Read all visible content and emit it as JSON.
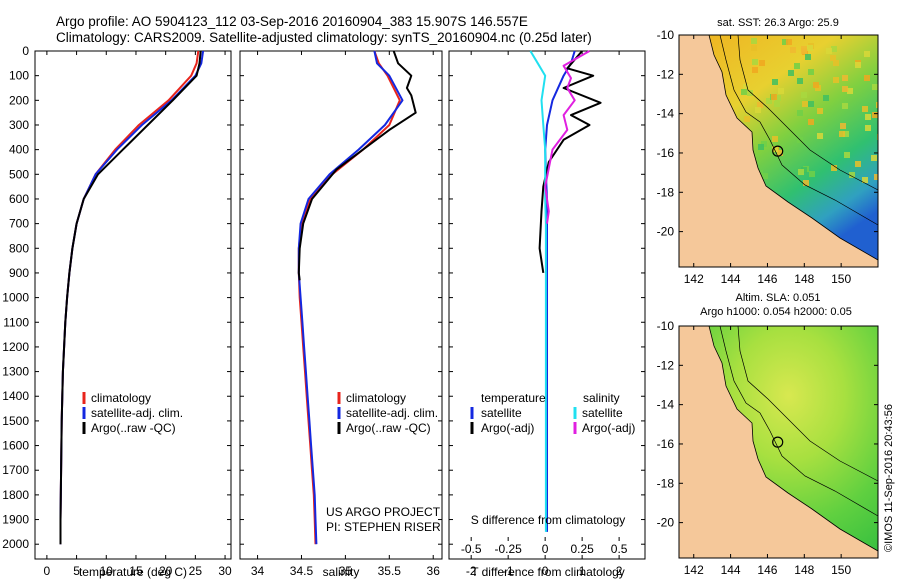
{
  "header": {
    "line1": "Argo profile: AO 5904123_112 03-Sep-2016 20160904_383 15.907S 146.557E",
    "line2": "Climatology: CARS2009. Satellite-adjusted climatology: synTS_20160904.nc (0.25d later)"
  },
  "credit": {
    "project": "US ARGO PROJECT",
    "pi": "PI: STEPHEN RISER",
    "stamp": "©IMOS 11-Sep-2016 20:43:56"
  },
  "colors": {
    "climatology": "#e8241c",
    "satellite": "#1428e0",
    "argo": "#000000",
    "sal_satellite": "#20e0f0",
    "sal_argo": "#e020e0",
    "land": "#f5c89a"
  },
  "chart_data": [
    {
      "type": "line",
      "xlabel": "temperature (deg C)",
      "xlim": [
        -2,
        31
      ],
      "xticks": [
        0,
        5,
        10,
        15,
        20,
        25,
        30
      ],
      "ylim": [
        0,
        2060
      ],
      "yticks": [
        0,
        100,
        200,
        300,
        400,
        500,
        600,
        700,
        800,
        900,
        1000,
        1100,
        1200,
        1300,
        1400,
        1500,
        1600,
        1700,
        1800,
        1900,
        2000
      ],
      "legend": [
        "climatology",
        "satellite-adj. clim.",
        "Argo(..raw -QC)"
      ],
      "series": [
        {
          "name": "climatology",
          "color": "#e8241c",
          "x": [
            25.5,
            25.2,
            24.3,
            20.5,
            15.5,
            11.5,
            8.2,
            6.2,
            5.0,
            4.3,
            3.8,
            3.4,
            3.1,
            2.9,
            2.7,
            2.6,
            2.5,
            2.45,
            2.4,
            2.35,
            2.3,
            2.3
          ],
          "y": [
            0,
            50,
            100,
            200,
            300,
            400,
            500,
            600,
            700,
            800,
            900,
            1000,
            1100,
            1200,
            1300,
            1400,
            1500,
            1600,
            1700,
            1800,
            1900,
            2000
          ]
        },
        {
          "name": "satellite-adj. clim.",
          "color": "#1428e0",
          "x": [
            26.3,
            26.0,
            25.0,
            21.0,
            16.0,
            11.8,
            8.2,
            6.2,
            5.0,
            4.3,
            3.8,
            3.4,
            3.1,
            2.9,
            2.7,
            2.6,
            2.5,
            2.45,
            2.4,
            2.35,
            2.3,
            2.3
          ],
          "y": [
            0,
            50,
            100,
            200,
            300,
            400,
            500,
            600,
            700,
            800,
            900,
            1000,
            1100,
            1200,
            1300,
            1400,
            1500,
            1600,
            1700,
            1800,
            1900,
            2000
          ]
        },
        {
          "name": "Argo(..raw -QC)",
          "color": "#000000",
          "x": [
            25.9,
            25.7,
            25.2,
            21.2,
            17.0,
            12.8,
            8.6,
            6.2,
            5.0,
            4.3,
            3.8,
            3.4,
            3.1,
            2.9,
            2.7,
            2.6,
            2.5,
            2.45,
            2.4,
            2.35,
            2.3,
            2.3
          ],
          "y": [
            0,
            50,
            100,
            200,
            300,
            400,
            500,
            600,
            700,
            800,
            900,
            1000,
            1100,
            1200,
            1300,
            1400,
            1500,
            1600,
            1700,
            1800,
            1900,
            2000
          ]
        }
      ]
    },
    {
      "type": "line",
      "xlabel": "salinity",
      "xlim": [
        33.8,
        36.1
      ],
      "xticks": [
        34,
        34.5,
        35,
        35.5,
        36
      ],
      "ylim": [
        0,
        2060
      ],
      "legend": [
        "climatology",
        "satellite-adj. clim.",
        "Argo(..raw -QC)"
      ],
      "series": [
        {
          "name": "climatology",
          "color": "#e8241c",
          "x": [
            35.33,
            35.38,
            35.48,
            35.62,
            35.5,
            35.2,
            34.85,
            34.6,
            34.5,
            34.47,
            34.47,
            34.48,
            34.5,
            34.52,
            34.54,
            34.56,
            34.58,
            34.6,
            34.62,
            34.64,
            34.65,
            34.66
          ],
          "y": [
            0,
            50,
            100,
            200,
            300,
            400,
            500,
            600,
            700,
            800,
            900,
            1000,
            1100,
            1200,
            1300,
            1400,
            1500,
            1600,
            1700,
            1800,
            1900,
            2000
          ]
        },
        {
          "name": "satellite-adj. clim.",
          "color": "#1428e0",
          "x": [
            35.33,
            35.36,
            35.5,
            35.65,
            35.45,
            35.15,
            34.82,
            34.58,
            34.49,
            34.47,
            34.47,
            34.49,
            34.51,
            34.53,
            34.55,
            34.57,
            34.59,
            34.61,
            34.63,
            34.65,
            34.66,
            34.67
          ],
          "y": [
            0,
            50,
            100,
            200,
            300,
            400,
            500,
            600,
            700,
            800,
            900,
            1000,
            1100,
            1200,
            1300,
            1400,
            1500,
            1600,
            1700,
            1800,
            1900,
            2000
          ]
        },
        {
          "name": "Argo(..raw -QC)",
          "color": "#000000",
          "x": [
            35.55,
            35.6,
            35.75,
            35.7,
            35.75,
            35.8,
            35.5,
            35.2,
            34.9,
            34.62,
            34.52,
            34.48,
            34.47,
            34.48
          ],
          "y": [
            0,
            50,
            100,
            150,
            180,
            250,
            320,
            400,
            480,
            600,
            700,
            800,
            900,
            930
          ]
        }
      ]
    },
    {
      "type": "line",
      "xlabel": "T difference from climatology",
      "xlabel2": "S difference from climatology",
      "xlim": [
        -2.6,
        2.7
      ],
      "xticks": [
        -2,
        -1,
        0,
        1,
        2
      ],
      "sticks": [
        "-0.5",
        "-0.25",
        "0",
        "0.25",
        "0.5"
      ],
      "ylim": [
        0,
        2060
      ],
      "legend": {
        "temperature": "temperature",
        "salinity": "salinity",
        "t_sat": "satellite",
        "t_argo": "Argo(-adj)",
        "s_sat": "satellite",
        "s_argo": "Argo(-adj)"
      },
      "series": [
        {
          "name": "satellite",
          "color": "#1428e0",
          "x": [
            0.8,
            0.7,
            0.5,
            0.2,
            0.05,
            0.0,
            0.02,
            0.05,
            0.05,
            0.05,
            0.05,
            0.05,
            0.05,
            0.05,
            0.05,
            0.05,
            0.05,
            0.05,
            0.05,
            0.05,
            0.05
          ],
          "y": [
            0,
            50,
            100,
            200,
            300,
            400,
            500,
            600,
            700,
            800,
            900,
            1000,
            1100,
            1200,
            1300,
            1400,
            1500,
            1600,
            1700,
            1800,
            1950
          ]
        },
        {
          "name": "Argo(-adj)",
          "color": "#000000",
          "x": [
            1.0,
            0.6,
            1.3,
            0.5,
            1.5,
            0.7,
            1.2,
            0.5,
            0.1,
            -0.05,
            -0.1,
            -0.15,
            -0.05
          ],
          "y": [
            0,
            70,
            100,
            150,
            210,
            260,
            300,
            360,
            450,
            550,
            650,
            800,
            900
          ]
        },
        {
          "name": "satellite",
          "color": "#20e0f0",
          "x": [
            -0.4,
            -0.2,
            0.0,
            -0.1,
            -0.05,
            0.0,
            0.0,
            0.0,
            0.02,
            0.02,
            0.02,
            0.02,
            0.02,
            0.02,
            0.02,
            0.02,
            0.02,
            0.02,
            0.02,
            0.02,
            0.02
          ],
          "y": [
            0,
            50,
            100,
            200,
            300,
            400,
            500,
            600,
            700,
            800,
            900,
            1000,
            1100,
            1200,
            1300,
            1400,
            1500,
            1600,
            1700,
            1800,
            1950
          ]
        },
        {
          "name": "Argo(-adj)",
          "color": "#e020e0",
          "x": [
            1.2,
            0.5,
            0.7,
            0.6,
            0.8,
            0.5,
            0.6,
            0.2,
            0.0,
            0.1,
            0.05
          ],
          "y": [
            0,
            60,
            110,
            150,
            200,
            260,
            320,
            400,
            550,
            650,
            700
          ]
        }
      ]
    },
    {
      "type": "heatmap",
      "title": "sat. SST: 26.3 Argo: 25.9",
      "xticks": [
        142,
        144,
        146,
        148,
        150
      ],
      "yticks": [
        -10,
        -12,
        -14,
        -16,
        -18,
        -20
      ],
      "xlim": [
        141.2,
        152.0
      ],
      "ylim": [
        -21.8,
        -10.0
      ],
      "marker": {
        "lon": 146.557,
        "lat": -15.907
      }
    },
    {
      "type": "heatmap",
      "title": "Altim. SLA: 0.051",
      "subtitle": "Argo h1000: 0.054 h2000: 0.05",
      "xticks": [
        142,
        144,
        146,
        148,
        150
      ],
      "yticks": [
        -10,
        -12,
        -14,
        -16,
        -18,
        -20
      ],
      "xlim": [
        141.2,
        152.0
      ],
      "ylim": [
        -21.8,
        -10.0
      ],
      "marker": {
        "lon": 146.557,
        "lat": -15.907
      }
    }
  ]
}
